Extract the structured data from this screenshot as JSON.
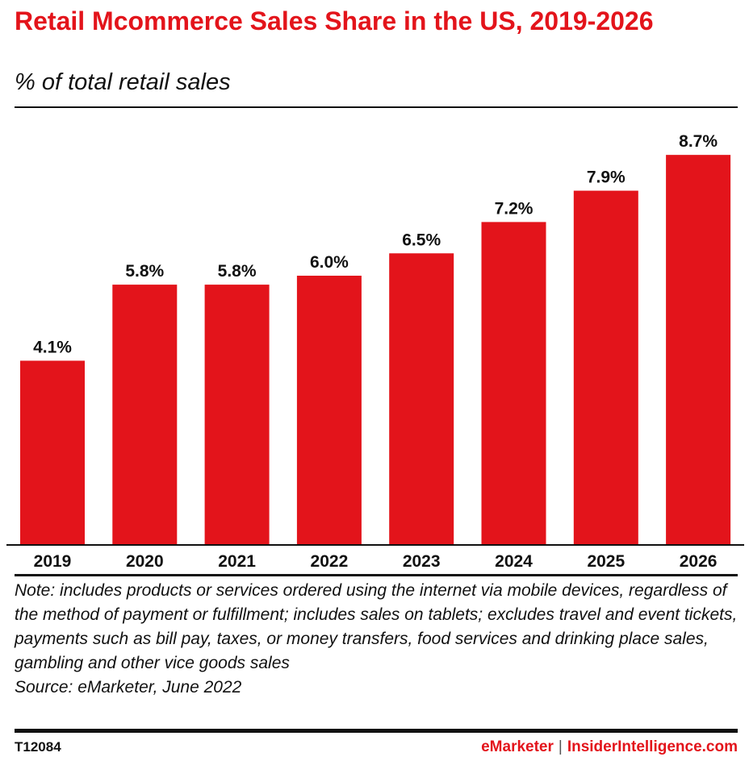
{
  "chart_data": {
    "type": "bar",
    "title": "Retail Mcommerce Sales Share in the US, 2019-2026",
    "subtitle": "% of total retail sales",
    "categories": [
      "2019",
      "2020",
      "2021",
      "2022",
      "2023",
      "2024",
      "2025",
      "2026"
    ],
    "values": [
      4.1,
      5.8,
      5.8,
      6.0,
      6.5,
      7.2,
      7.9,
      8.7
    ],
    "labels": [
      "4.1%",
      "5.8%",
      "5.8%",
      "6.0%",
      "6.5%",
      "7.2%",
      "7.9%",
      "8.7%"
    ],
    "xlabel": "",
    "ylabel": "",
    "ylim": [
      0,
      9.5
    ],
    "grid": false,
    "bar_color": "#e3141b"
  },
  "note": "Note: includes products or services ordered using the internet via mobile devices, regardless of the method of payment or fulfillment; includes sales on tablets; excludes travel and event tickets, payments such as bill pay, taxes, or money transfers, food services and drinking place sales, gambling and other vice goods sales",
  "source": "Source: eMarketer, June 2022",
  "footer": {
    "id": "T12084",
    "brand1": "eMarketer",
    "separator": "|",
    "brand2": "InsiderIntelligence.com"
  }
}
